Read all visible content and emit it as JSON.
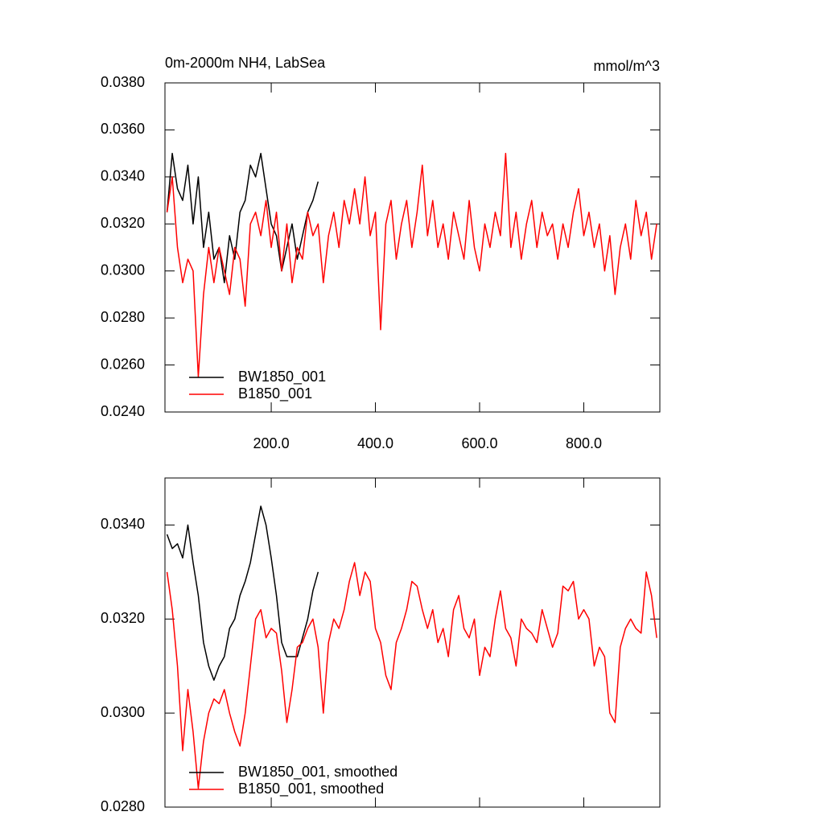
{
  "chart_data": [
    {
      "type": "line",
      "title": "0m-2000m NH4, LabSea",
      "units": "mmol/m^3",
      "xlim": [
        -4,
        946
      ],
      "ylim": [
        0.024,
        0.038
      ],
      "show_xtick_labels": true,
      "legend": "lower left",
      "xticks": [
        {
          "value": 200,
          "label": "200.0"
        },
        {
          "value": 400,
          "label": "400.0"
        },
        {
          "value": 600,
          "label": "600.0"
        },
        {
          "value": 800,
          "label": "800.0"
        }
      ],
      "yticks": [
        {
          "value": 0.024,
          "label": "0.0240"
        },
        {
          "value": 0.026,
          "label": "0.0260"
        },
        {
          "value": 0.028,
          "label": "0.0280"
        },
        {
          "value": 0.03,
          "label": "0.0300"
        },
        {
          "value": 0.032,
          "label": "0.0320"
        },
        {
          "value": 0.034,
          "label": "0.0340"
        },
        {
          "value": 0.036,
          "label": "0.0360"
        },
        {
          "value": 0.038,
          "label": "0.0380"
        }
      ],
      "series": [
        {
          "name": "BW1850_001",
          "color": "#000000",
          "x": [
            0,
            10,
            20,
            30,
            40,
            50,
            60,
            70,
            80,
            90,
            100,
            110,
            120,
            130,
            140,
            150,
            160,
            170,
            180,
            190,
            200,
            210,
            220,
            230,
            240,
            250,
            260,
            270,
            280,
            290
          ],
          "values": [
            0.0325,
            0.035,
            0.0335,
            0.033,
            0.0345,
            0.032,
            0.034,
            0.031,
            0.0325,
            0.0305,
            0.031,
            0.0295,
            0.0315,
            0.0305,
            0.0325,
            0.033,
            0.0345,
            0.034,
            0.035,
            0.0335,
            0.032,
            0.0315,
            0.03,
            0.031,
            0.032,
            0.0305,
            0.0315,
            0.0325,
            0.033,
            0.0338
          ]
        },
        {
          "name": "B1850_001",
          "color": "#ff0000",
          "x": [
            0,
            10,
            20,
            30,
            40,
            50,
            60,
            70,
            80,
            90,
            100,
            110,
            120,
            130,
            140,
            150,
            160,
            170,
            180,
            190,
            200,
            210,
            220,
            230,
            240,
            250,
            260,
            270,
            280,
            290,
            300,
            310,
            320,
            330,
            340,
            350,
            360,
            370,
            380,
            390,
            400,
            410,
            420,
            430,
            440,
            450,
            460,
            470,
            480,
            490,
            500,
            510,
            520,
            530,
            540,
            550,
            560,
            570,
            580,
            590,
            600,
            610,
            620,
            630,
            640,
            650,
            660,
            670,
            680,
            690,
            700,
            710,
            720,
            730,
            740,
            750,
            760,
            770,
            780,
            790,
            800,
            810,
            820,
            830,
            840,
            850,
            860,
            870,
            880,
            890,
            900,
            910,
            920,
            930,
            940
          ],
          "values": [
            0.0325,
            0.034,
            0.031,
            0.0295,
            0.0305,
            0.03,
            0.0255,
            0.029,
            0.031,
            0.0295,
            0.031,
            0.03,
            0.029,
            0.031,
            0.0305,
            0.0285,
            0.032,
            0.0325,
            0.0315,
            0.033,
            0.031,
            0.0325,
            0.03,
            0.032,
            0.0295,
            0.031,
            0.0305,
            0.0325,
            0.0315,
            0.032,
            0.0295,
            0.0315,
            0.0325,
            0.031,
            0.033,
            0.032,
            0.0335,
            0.032,
            0.034,
            0.0315,
            0.0325,
            0.0275,
            0.032,
            0.033,
            0.0305,
            0.032,
            0.033,
            0.031,
            0.0325,
            0.0345,
            0.0315,
            0.033,
            0.031,
            0.032,
            0.0305,
            0.0325,
            0.0315,
            0.0305,
            0.033,
            0.031,
            0.03,
            0.032,
            0.031,
            0.0325,
            0.0315,
            0.035,
            0.031,
            0.0325,
            0.0305,
            0.032,
            0.033,
            0.031,
            0.0325,
            0.0315,
            0.032,
            0.0305,
            0.032,
            0.031,
            0.0325,
            0.0335,
            0.0315,
            0.0325,
            0.031,
            0.032,
            0.03,
            0.0315,
            0.029,
            0.031,
            0.032,
            0.0305,
            0.033,
            0.0315,
            0.0325,
            0.0305,
            0.032
          ]
        }
      ]
    },
    {
      "type": "line",
      "xlim": [
        -4,
        946
      ],
      "ylim": [
        0.028,
        0.035
      ],
      "show_xtick_labels": false,
      "legend": "lower left",
      "xticks": [
        200,
        400,
        600,
        800
      ],
      "yticks": [
        {
          "value": 0.028,
          "label": "0.0280"
        },
        {
          "value": 0.03,
          "label": "0.0300"
        },
        {
          "value": 0.032,
          "label": "0.0320"
        },
        {
          "value": 0.034,
          "label": "0.0340"
        }
      ],
      "series": [
        {
          "name": "BW1850_001, smoothed",
          "color": "#000000",
          "x": [
            0,
            10,
            20,
            30,
            40,
            50,
            60,
            70,
            80,
            90,
            100,
            110,
            120,
            130,
            140,
            150,
            160,
            170,
            180,
            190,
            200,
            210,
            220,
            230,
            240,
            250,
            260,
            270,
            280,
            290
          ],
          "values": [
            0.0338,
            0.0335,
            0.0336,
            0.0333,
            0.034,
            0.0332,
            0.0325,
            0.0315,
            0.031,
            0.0307,
            0.031,
            0.0312,
            0.0318,
            0.032,
            0.0325,
            0.0328,
            0.0332,
            0.0338,
            0.0344,
            0.034,
            0.0333,
            0.0325,
            0.0315,
            0.0312,
            0.0312,
            0.0312,
            0.0316,
            0.032,
            0.0326,
            0.033
          ]
        },
        {
          "name": "B1850_001, smoothed",
          "color": "#ff0000",
          "x": [
            0,
            10,
            20,
            30,
            40,
            50,
            60,
            70,
            80,
            90,
            100,
            110,
            120,
            130,
            140,
            150,
            160,
            170,
            180,
            190,
            200,
            210,
            220,
            230,
            240,
            250,
            260,
            270,
            280,
            290,
            300,
            310,
            320,
            330,
            340,
            350,
            360,
            370,
            380,
            390,
            400,
            410,
            420,
            430,
            440,
            450,
            460,
            470,
            480,
            490,
            500,
            510,
            520,
            530,
            540,
            550,
            560,
            570,
            580,
            590,
            600,
            610,
            620,
            630,
            640,
            650,
            660,
            670,
            680,
            690,
            700,
            710,
            720,
            730,
            740,
            750,
            760,
            770,
            780,
            790,
            800,
            810,
            820,
            830,
            840,
            850,
            860,
            870,
            880,
            890,
            900,
            910,
            920,
            930,
            940
          ],
          "values": [
            0.033,
            0.0322,
            0.031,
            0.0292,
            0.0305,
            0.0296,
            0.0284,
            0.0294,
            0.03,
            0.0303,
            0.0302,
            0.0305,
            0.03,
            0.0296,
            0.0293,
            0.03,
            0.031,
            0.032,
            0.0322,
            0.0316,
            0.0318,
            0.0317,
            0.0309,
            0.0298,
            0.0305,
            0.0314,
            0.0315,
            0.0318,
            0.032,
            0.0314,
            0.03,
            0.0315,
            0.032,
            0.0318,
            0.0322,
            0.0328,
            0.0332,
            0.0325,
            0.033,
            0.0328,
            0.0318,
            0.0315,
            0.0308,
            0.0305,
            0.0315,
            0.0318,
            0.0322,
            0.0328,
            0.0327,
            0.0322,
            0.0318,
            0.0322,
            0.0315,
            0.0318,
            0.0312,
            0.0322,
            0.0325,
            0.0318,
            0.0316,
            0.032,
            0.0308,
            0.0314,
            0.0312,
            0.032,
            0.0326,
            0.0318,
            0.0316,
            0.031,
            0.032,
            0.0318,
            0.0317,
            0.0315,
            0.0322,
            0.0318,
            0.0314,
            0.0317,
            0.0327,
            0.0326,
            0.0328,
            0.032,
            0.0322,
            0.032,
            0.031,
            0.0314,
            0.0312,
            0.03,
            0.0298,
            0.0314,
            0.0318,
            0.032,
            0.0318,
            0.0317,
            0.033,
            0.0325,
            0.0316
          ]
        }
      ]
    }
  ]
}
